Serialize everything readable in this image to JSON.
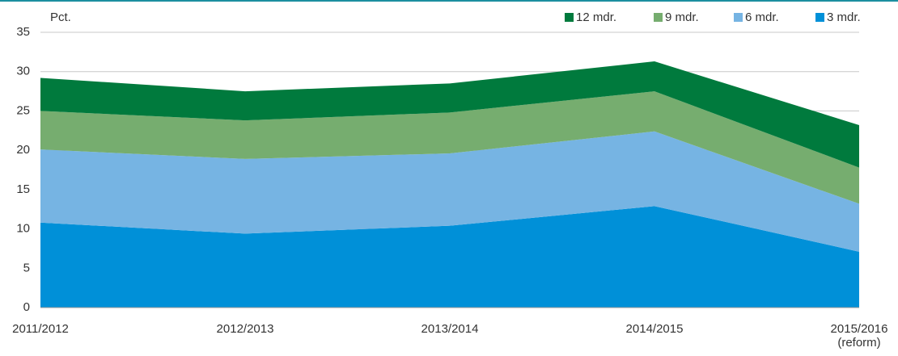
{
  "chart_data": {
    "type": "stacked_area",
    "y_label": "Pct.",
    "categories": [
      "2011/2012",
      "2012/2013",
      "2013/2014",
      "2014/2015",
      "2015/2016\n(reform)"
    ],
    "series": [
      {
        "name": "12 mdr.",
        "color": "#007a3d",
        "values": [
          4.2,
          3.7,
          3.7,
          3.8,
          5.4
        ]
      },
      {
        "name": "9 mdr.",
        "color": "#76ad6f",
        "values": [
          4.9,
          4.9,
          5.2,
          5.1,
          4.6
        ]
      },
      {
        "name": "6 mdr.",
        "color": "#76b4e3",
        "values": [
          9.3,
          9.5,
          9.2,
          9.5,
          6.1
        ]
      },
      {
        "name": "3 mdr.",
        "color": "#0090d8",
        "values": [
          10.8,
          9.4,
          10.4,
          12.9,
          7.1
        ]
      }
    ],
    "ylim": [
      0,
      35
    ],
    "yticks": [
      0,
      5,
      10,
      15,
      20,
      25,
      30,
      35
    ],
    "grid": true
  }
}
